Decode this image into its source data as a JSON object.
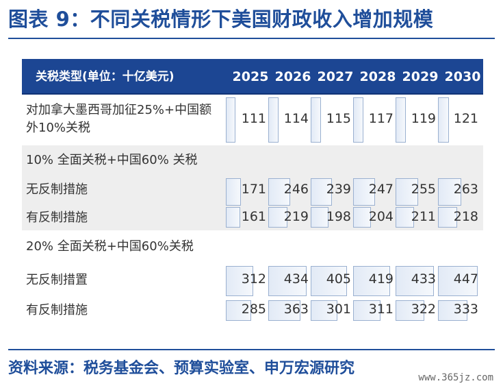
{
  "title": "图表 9：不同关税情形下美国财政收入增加规模",
  "table": {
    "header_label": "关税类型(单位：十亿美元)",
    "years": [
      "2025",
      "2026",
      "2027",
      "2028",
      "2029",
      "2030"
    ],
    "scenario_a": {
      "label_line1": "对加拿大墨西哥加征25%+中国额",
      "label_line2": "外10%关税",
      "values": [
        111,
        114,
        115,
        117,
        119,
        121
      ]
    },
    "scenario_b": {
      "title": "10% 全面关税+中国60% 关税",
      "no_retaliation": {
        "label": "无反制措施",
        "values": [
          171,
          246,
          239,
          247,
          255,
          263
        ]
      },
      "retaliation": {
        "label": "有反制措施",
        "values": [
          161,
          219,
          198,
          204,
          211,
          218
        ]
      }
    },
    "scenario_c": {
      "title": "20% 全面关税+中国60%关税",
      "no_retaliation": {
        "label": "无反制措置",
        "values": [
          312,
          434,
          405,
          419,
          433,
          447
        ]
      },
      "retaliation": {
        "label": "有反制措施",
        "values": [
          285,
          363,
          301,
          311,
          322,
          333
        ]
      }
    }
  },
  "source": "资料来源：税务基金会、预算实验室、申万宏源研究",
  "watermark": "www.365jz.com",
  "colors": {
    "title": "#1f4e9a",
    "header_bg": "#1c4693",
    "bar_border": "#9ab0d0",
    "bar_fill": "#e2eaf6",
    "band_bg": "#eeeeee"
  }
}
